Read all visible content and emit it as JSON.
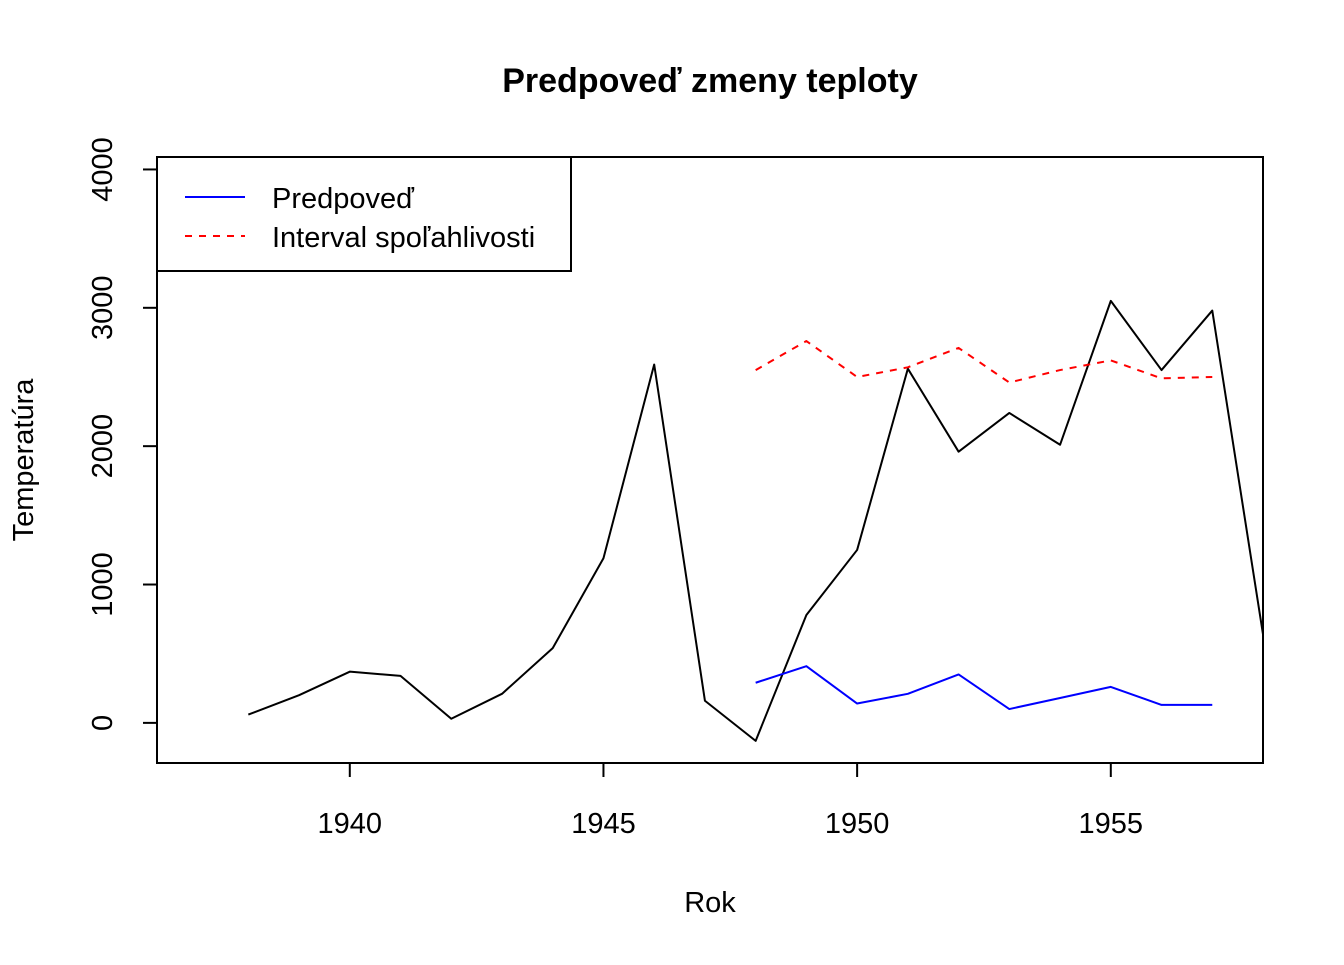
{
  "chart_data": {
    "type": "line",
    "title": "Predpoveď zmeny teploty",
    "xlabel": "Rok",
    "ylabel": "Temperatúra",
    "xlim": [
      1936.2,
      1958
    ],
    "ylim": [
      -290,
      4090
    ],
    "x_ticks": [
      1940,
      1945,
      1950,
      1955
    ],
    "y_ticks": [
      0,
      1000,
      2000,
      3000,
      4000
    ],
    "grid": false,
    "legend_position": "top-left",
    "series": [
      {
        "id": "observed",
        "color": "#000000",
        "dash": "solid",
        "x": [
          1938,
          1939,
          1940,
          1941,
          1942,
          1943,
          1944,
          1945,
          1946,
          1947,
          1948,
          1949,
          1950,
          1951,
          1952,
          1953,
          1954,
          1955,
          1956,
          1957,
          1958
        ],
        "y": [
          60,
          200,
          370,
          340,
          30,
          210,
          540,
          1190,
          2590,
          160,
          -130,
          780,
          1250,
          2560,
          1960,
          2240,
          2010,
          3050,
          2550,
          2980,
          640
        ]
      },
      {
        "id": "forecast",
        "name": "Predpoveď",
        "color": "#0000ff",
        "dash": "solid",
        "x": [
          1948,
          1949,
          1950,
          1951,
          1952,
          1953,
          1954,
          1955,
          1956,
          1957
        ],
        "y": [
          290,
          410,
          140,
          210,
          350,
          100,
          180,
          260,
          130,
          130
        ]
      },
      {
        "id": "confidence",
        "name": "Interval spoľahlivosti",
        "color": "#ff0000",
        "dash": "dashed",
        "x": [
          1948,
          1949,
          1950,
          1951,
          1952,
          1953,
          1954,
          1955,
          1956,
          1957
        ],
        "y": [
          2550,
          2760,
          2500,
          2570,
          2710,
          2460,
          2550,
          2620,
          2490,
          2500
        ]
      }
    ]
  }
}
